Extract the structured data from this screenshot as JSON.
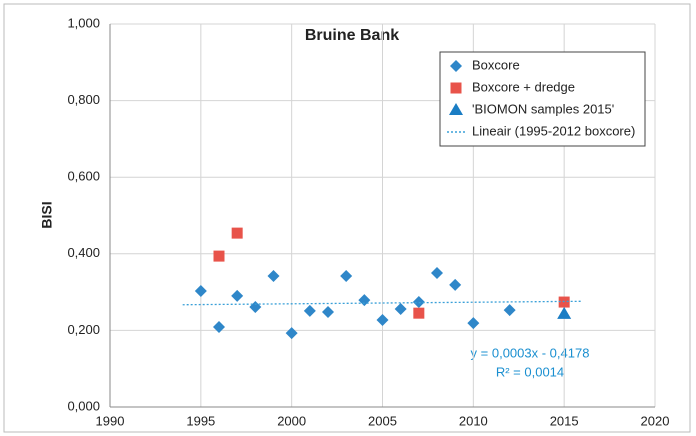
{
  "chart_data": {
    "type": "scatter",
    "title": "Bruine Bank",
    "y_label": "BISI",
    "xlim": [
      1990,
      2020
    ],
    "xticks": [
      1990,
      1995,
      2000,
      2005,
      2010,
      2015,
      2020
    ],
    "ylim": [
      0,
      1
    ],
    "yticks": [
      {
        "value": 0,
        "label": "0,000"
      },
      {
        "value": 0.2,
        "label": "0,200"
      },
      {
        "value": 0.4,
        "label": "0,400"
      },
      {
        "value": 0.6,
        "label": "0,600"
      },
      {
        "value": 0.8,
        "label": "0,800"
      },
      {
        "value": 1,
        "label": "1,000"
      }
    ],
    "grid": true,
    "legend": "upper right",
    "series": [
      {
        "name": "Boxcore",
        "color": "#2f87c9",
        "marker": "diamond",
        "x": [
          1995,
          1996,
          1997,
          1998,
          1999,
          2000,
          2001,
          2002,
          2003,
          2004,
          2005,
          2006,
          2007,
          2008,
          2009,
          2010,
          2012
        ],
        "values": [
          0.303,
          0.209,
          0.29,
          0.261,
          0.342,
          0.193,
          0.251,
          0.248,
          0.342,
          0.279,
          0.227,
          0.256,
          0.274,
          0.35,
          0.319,
          0.219,
          0.253
        ]
      },
      {
        "name": "Boxcore + dredge",
        "color": "#e8534a",
        "marker": "square",
        "x": [
          1996,
          1997,
          2007,
          2015
        ],
        "values": [
          0.394,
          0.454,
          0.245,
          0.274
        ]
      },
      {
        "name": "'BIOMON samples 2015'",
        "color": "#1a7dc4",
        "marker": "triangle",
        "x": [
          2015
        ],
        "values": [
          0.243
        ]
      },
      {
        "name": "Lineair (1995-2012 boxcore)",
        "color": "#3aa0d8",
        "marker": "dotted-line",
        "x": [
          1994,
          2016
        ],
        "values": [
          0.267,
          0.276
        ]
      }
    ],
    "annotations": [
      "y = 0,0003x - 0,4178",
      "R² = 0,0014"
    ]
  }
}
